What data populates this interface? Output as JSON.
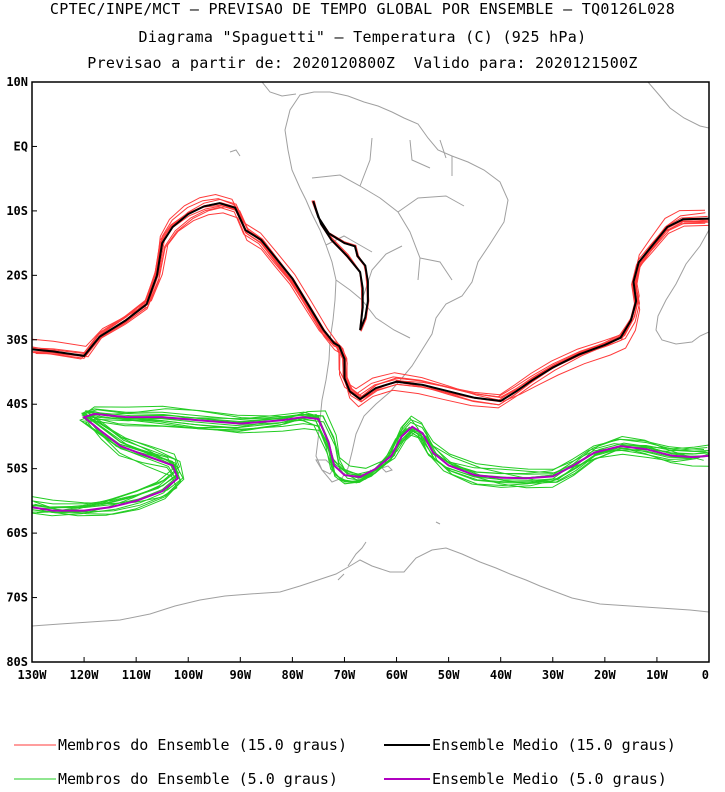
{
  "header": {
    "line1": "CPTEC/INPE/MCT – PREVISAO DE TEMPO GLOBAL POR ENSEMBLE – TQ0126L028",
    "line2": "Diagrama \"Spaguetti\" – Temperatura (C) (925 hPa)",
    "line3": "Previsao a partir de: 2020120800Z  Valido para: 2020121500Z"
  },
  "map": {
    "lat_labels": [
      "10N",
      "EQ",
      "10S",
      "20S",
      "30S",
      "40S",
      "50S",
      "60S",
      "70S",
      "80S"
    ],
    "lon_labels": [
      "130W",
      "120W",
      "110W",
      "100W",
      "90W",
      "80W",
      "70W",
      "60W",
      "50W",
      "40W",
      "30W",
      "20W",
      "10W",
      "0"
    ],
    "extent": {
      "lon": [
        -130,
        0
      ],
      "lat": [
        -80,
        10
      ]
    },
    "colors": {
      "members_15": "#ff3b3b",
      "mean_15": "#000000",
      "members_5": "#22cc22",
      "mean_5": "#b000c0",
      "coast": "#a0a0a0"
    }
  },
  "isolines": {
    "mean_15": [
      [
        -130,
        -31.5
      ],
      [
        -126,
        -31.8
      ],
      [
        -120,
        -32.5
      ],
      [
        -117,
        -29.5
      ],
      [
        -112,
        -27
      ],
      [
        -108,
        -24.5
      ],
      [
        -106,
        -20
      ],
      [
        -105,
        -15
      ],
      [
        -103,
        -12.5
      ],
      [
        -100,
        -10.5
      ],
      [
        -97,
        -9.3
      ],
      [
        -94,
        -8.8
      ],
      [
        -91,
        -9.5
      ],
      [
        -89,
        -13
      ],
      [
        -86,
        -14.5
      ],
      [
        -83,
        -17.5
      ],
      [
        -80,
        -20.5
      ],
      [
        -77,
        -24.5
      ],
      [
        -74,
        -28.5
      ],
      [
        -72,
        -30.5
      ],
      [
        -71,
        -31
      ],
      [
        -70,
        -33
      ],
      [
        -70,
        -36
      ],
      [
        -69,
        -38
      ],
      [
        -67,
        -39.2
      ],
      [
        -64,
        -37.5
      ],
      [
        -60,
        -36.5
      ],
      [
        -55,
        -37
      ],
      [
        -50,
        -38
      ],
      [
        -45,
        -39
      ],
      [
        -40,
        -39.5
      ],
      [
        -37,
        -38
      ],
      [
        -34,
        -36.3
      ],
      [
        -30,
        -34.3
      ],
      [
        -25,
        -32.3
      ],
      [
        -20,
        -30.8
      ],
      [
        -17,
        -29.7
      ],
      [
        -15,
        -27
      ],
      [
        -14,
        -24
      ],
      [
        -14.5,
        -21
      ],
      [
        -13.5,
        -18
      ],
      [
        -11,
        -15.5
      ],
      [
        -8,
        -12.5
      ],
      [
        -5,
        -11.3
      ],
      [
        0,
        -11.2
      ]
    ],
    "mean_15_andes": [
      [
        -76,
        -8.5
      ],
      [
        -75,
        -11
      ],
      [
        -73,
        -13.5
      ],
      [
        -70,
        -15
      ],
      [
        -68,
        -15.5
      ],
      [
        -67.5,
        -17
      ],
      [
        -66,
        -18.5
      ],
      [
        -65.5,
        -21
      ],
      [
        -65.5,
        -24
      ],
      [
        -66,
        -26.5
      ],
      [
        -67,
        -28.5
      ],
      [
        -66.5,
        -25
      ],
      [
        -66.5,
        -22
      ],
      [
        -67,
        -19.5
      ],
      [
        -69.5,
        -17
      ],
      [
        -72.5,
        -14.5
      ],
      [
        -74.5,
        -12
      ],
      [
        -76,
        -8.5
      ]
    ],
    "mean_5": [
      [
        -130,
        -56
      ],
      [
        -126,
        -56.5
      ],
      [
        -120,
        -56.5
      ],
      [
        -115,
        -56
      ],
      [
        -110,
        -55
      ],
      [
        -105,
        -53.5
      ],
      [
        -102,
        -51.5
      ],
      [
        -103,
        -49.5
      ],
      [
        -108,
        -48
      ],
      [
        -113,
        -46.5
      ],
      [
        -117,
        -44
      ],
      [
        -120,
        -42
      ],
      [
        -118,
        -41.5
      ],
      [
        -112,
        -42
      ],
      [
        -105,
        -42
      ],
      [
        -98,
        -42.5
      ],
      [
        -90,
        -43
      ],
      [
        -82,
        -42.5
      ],
      [
        -78,
        -42
      ],
      [
        -75,
        -42.3
      ],
      [
        -73,
        -46
      ],
      [
        -72,
        -49.5
      ],
      [
        -70,
        -51
      ],
      [
        -67,
        -51.3
      ],
      [
        -64,
        -50
      ],
      [
        -61,
        -48
      ],
      [
        -59,
        -45
      ],
      [
        -57,
        -43.5
      ],
      [
        -55,
        -44.5
      ],
      [
        -53,
        -47.5
      ],
      [
        -50,
        -49.5
      ],
      [
        -45,
        -51
      ],
      [
        -40,
        -51.4
      ],
      [
        -35,
        -51.5
      ],
      [
        -30,
        -51.2
      ],
      [
        -26,
        -49.5
      ],
      [
        -22,
        -47.5
      ],
      [
        -17,
        -46.5
      ],
      [
        -12,
        -47
      ],
      [
        -7,
        -48
      ],
      [
        -3,
        -48.2
      ],
      [
        0,
        -48
      ]
    ]
  },
  "legend": {
    "members_15": "Membros do Ensemble (15.0 graus)",
    "mean_15": "Ensemble Medio (15.0 graus)",
    "members_5": "Membros do Ensemble (5.0 graus)",
    "mean_5": "Ensemble Medio (5.0 graus)"
  }
}
